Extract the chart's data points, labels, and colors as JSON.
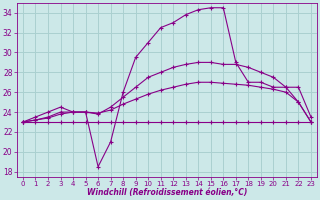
{
  "xlabel": "Windchill (Refroidissement éolien,°C)",
  "bg_color": "#cce8e8",
  "grid_color": "#aad0d0",
  "line_color": "#880088",
  "ylim": [
    17.5,
    35.0
  ],
  "xlim": [
    -0.5,
    23.5
  ],
  "yticks": [
    18,
    20,
    22,
    24,
    26,
    28,
    30,
    32,
    34
  ],
  "xticks": [
    0,
    1,
    2,
    3,
    4,
    5,
    6,
    7,
    8,
    9,
    10,
    11,
    12,
    13,
    14,
    15,
    16,
    17,
    18,
    19,
    20,
    21,
    22,
    23
  ],
  "series": [
    {
      "x": [
        0,
        1,
        2,
        3,
        4,
        5,
        6,
        7,
        8,
        9,
        10,
        11,
        12,
        13,
        14,
        15,
        16,
        17,
        18,
        19,
        20,
        21,
        22,
        23
      ],
      "y": [
        23.0,
        23.5,
        24.0,
        24.5,
        24.0,
        24.0,
        18.5,
        21.0,
        26.0,
        29.5,
        31.0,
        32.5,
        33.0,
        33.8,
        34.3,
        34.5,
        34.5,
        29.0,
        27.0,
        27.0,
        26.5,
        26.5,
        26.5,
        23.5
      ]
    },
    {
      "x": [
        0,
        1,
        2,
        3,
        4,
        5,
        6,
        7,
        8,
        9,
        10,
        11,
        12,
        13,
        14,
        15,
        16,
        17,
        18,
        19,
        20,
        21,
        22,
        23
      ],
      "y": [
        23.0,
        23.2,
        23.5,
        24.0,
        24.0,
        24.0,
        23.8,
        24.5,
        25.5,
        26.5,
        27.5,
        28.0,
        28.5,
        28.8,
        29.0,
        29.0,
        28.8,
        28.8,
        28.5,
        28.0,
        27.5,
        26.5,
        25.0,
        23.0
      ]
    },
    {
      "x": [
        0,
        1,
        2,
        3,
        4,
        5,
        6,
        7,
        8,
        9,
        10,
        11,
        12,
        13,
        14,
        15,
        16,
        17,
        18,
        19,
        20,
        21,
        22,
        23
      ],
      "y": [
        23.0,
        23.2,
        23.4,
        23.8,
        24.0,
        24.0,
        23.9,
        24.2,
        24.8,
        25.3,
        25.8,
        26.2,
        26.5,
        26.8,
        27.0,
        27.0,
        26.9,
        26.8,
        26.7,
        26.5,
        26.3,
        26.0,
        25.0,
        23.0
      ]
    },
    {
      "x": [
        0,
        1,
        2,
        3,
        4,
        5,
        6,
        7,
        8,
        9,
        10,
        11,
        12,
        13,
        14,
        15,
        16,
        17,
        18,
        19,
        20,
        21,
        22,
        23
      ],
      "y": [
        23.0,
        23.0,
        23.0,
        23.0,
        23.0,
        23.0,
        23.0,
        23.0,
        23.0,
        23.0,
        23.0,
        23.0,
        23.0,
        23.0,
        23.0,
        23.0,
        23.0,
        23.0,
        23.0,
        23.0,
        23.0,
        23.0,
        23.0,
        23.0
      ]
    }
  ]
}
